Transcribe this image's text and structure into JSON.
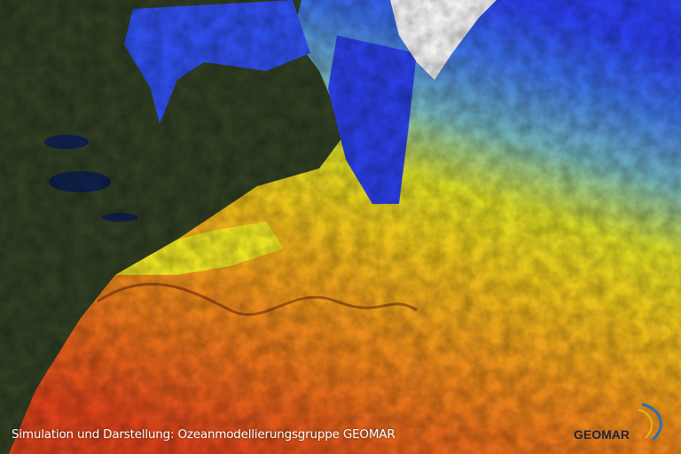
{
  "caption": "Simulation und Darstellung: Ozeanmodellierungsgruppe GEOMAR",
  "logo": {
    "text": "GEOMAR",
    "colors": {
      "text": "#1c2340",
      "swoosh_blue": "#2a6fb5",
      "swoosh_yellow": "#e2b21d"
    }
  },
  "colors": {
    "land": "#2f3d22",
    "cold_water": "#2a3ee8",
    "mid_water": "#5aa0d8",
    "warm_water": "#e8d21a",
    "hot_water": "#e2601a",
    "ice": "#f2f2f2"
  }
}
